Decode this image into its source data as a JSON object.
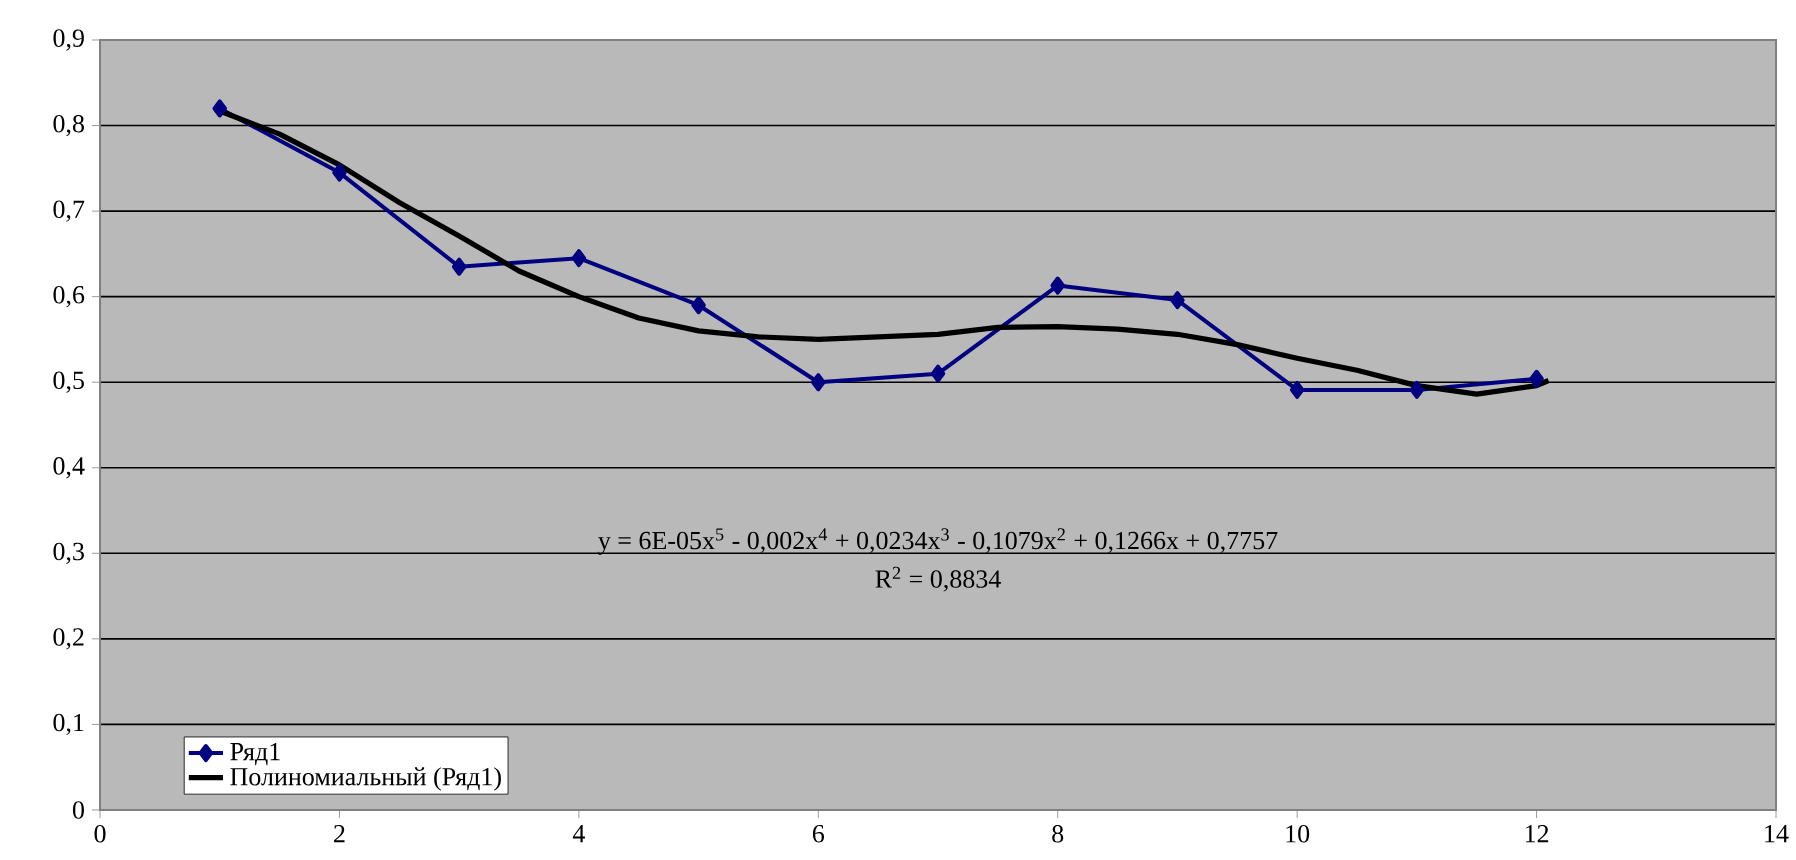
{
  "chart_data": {
    "type": "line",
    "xlim": [
      0,
      14
    ],
    "xticks": [
      0,
      2,
      4,
      6,
      8,
      10,
      12,
      14
    ],
    "ylim": [
      0,
      0.9
    ],
    "yticks": [
      0,
      {
        "value": 0.1,
        "label": "0,1"
      },
      {
        "value": 0.2,
        "label": "0,2"
      },
      {
        "value": 0.3,
        "label": "0,3"
      },
      {
        "value": 0.4,
        "label": "0,4"
      },
      {
        "value": 0.5,
        "label": "0,5"
      },
      {
        "value": 0.6,
        "label": "0,6"
      },
      {
        "value": 0.7,
        "label": "0,7"
      },
      {
        "value": 0.8,
        "label": "0,8"
      },
      {
        "value": 0.9,
        "label": "0,9"
      }
    ],
    "grid": "y",
    "legend": "bottom left",
    "series": [
      {
        "name": "Ряд1",
        "color": "#000080",
        "marker": "diamond",
        "x": [
          1,
          2,
          3,
          4,
          5,
          6,
          7,
          8,
          9,
          10,
          11,
          12
        ],
        "values": [
          0.82,
          0.745,
          0.635,
          0.645,
          0.59,
          0.5,
          0.51,
          0.613,
          0.596,
          0.491,
          0.491,
          0.504
        ]
      },
      {
        "name": "Полиномиальный (Ряд1)",
        "type": "line",
        "color": "#000000",
        "marker": "none",
        "x": [
          1,
          1.5,
          2,
          2.5,
          3,
          3.5,
          4,
          4.5,
          5,
          5.5,
          6,
          6.5,
          7,
          7.5,
          8,
          8.5,
          9,
          9.5,
          10,
          10.5,
          11,
          11.5,
          12,
          12.1
        ],
        "values": [
          0.817,
          0.79,
          0.754,
          0.71,
          0.671,
          0.63,
          0.6,
          0.575,
          0.56,
          0.553,
          0.55,
          0.553,
          0.556,
          0.564,
          0.565,
          0.562,
          0.556,
          0.544,
          0.528,
          0.514,
          0.496,
          0.486,
          0.496,
          0.502
        ]
      }
    ],
    "annotations": [
      "y = 6E-05x$^{5}$ - 0,002x$^{4}$ + 0,0234x$^{3}$ - 0,1079x$^{2}$ + 0,1266x + 0,7757",
      "R$^{2}$ = 0,8834"
    ]
  }
}
